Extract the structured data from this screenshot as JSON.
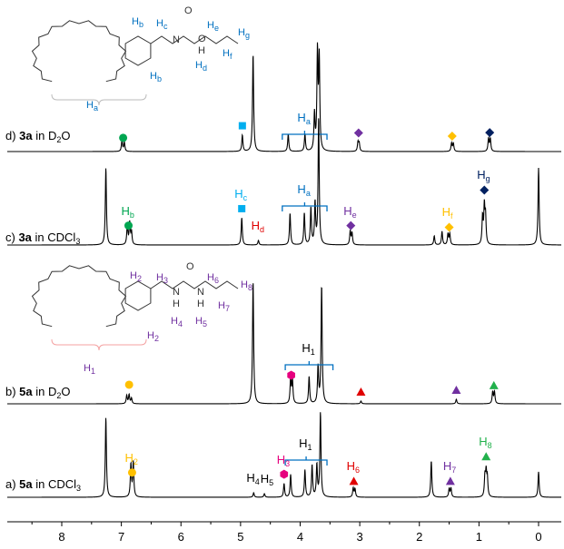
{
  "chart_data": {
    "type": "line",
    "xlabel": "",
    "xlim": [
      8.9,
      -0.4
    ],
    "x_reversed": true,
    "x_ticks": [
      "8",
      "7",
      "6",
      "5",
      "4",
      "3",
      "2",
      "1",
      "0"
    ],
    "grid": false,
    "spectra": [
      {
        "id": "d",
        "prefix": "d) ",
        "compound": "3a",
        "mid": " in D",
        "sub": "2",
        "suffix": "O",
        "peaks": [
          [
            6.99,
            12
          ],
          [
            6.95,
            10
          ],
          [
            4.97,
            18
          ],
          [
            4.79,
            107
          ],
          [
            4.2,
            19
          ],
          [
            3.92,
            19
          ],
          [
            3.76,
            40
          ],
          [
            3.71,
            107
          ],
          [
            3.68,
            100
          ],
          [
            3.03,
            10
          ],
          [
            3.01,
            9
          ],
          [
            1.46,
            9
          ],
          [
            1.43,
            9
          ],
          [
            0.84,
            14
          ],
          [
            0.81,
            14
          ]
        ],
        "markers": [
          {
            "ppm": 6.97,
            "shape": "circle",
            "color": "#00a651",
            "label": "",
            "sub": ""
          },
          {
            "ppm": 4.97,
            "shape": "square",
            "color": "#00aeef",
            "label": "",
            "sub": ""
          },
          {
            "ppm": 3.02,
            "shape": "diamond",
            "color": "#7030a0",
            "label": "",
            "sub": ""
          },
          {
            "ppm": 1.45,
            "shape": "diamond",
            "color": "#ffc000",
            "label": "",
            "sub": ""
          },
          {
            "ppm": 0.82,
            "shape": "diamond",
            "color": "#002060",
            "label": "",
            "sub": ""
          }
        ],
        "bracket": {
          "from": 4.3,
          "to": 3.55,
          "color": "#0070c0",
          "label": "H",
          "sub": "a"
        }
      },
      {
        "id": "c",
        "prefix": "c) ",
        "compound": "3a",
        "mid": " in CDCl",
        "sub": "3",
        "suffix": "",
        "peaks": [
          [
            7.26,
            85
          ],
          [
            6.9,
            22
          ],
          [
            6.86,
            24
          ],
          [
            6.83,
            14
          ],
          [
            4.98,
            30
          ],
          [
            4.7,
            5
          ],
          [
            4.17,
            35
          ],
          [
            3.93,
            35
          ],
          [
            3.82,
            40
          ],
          [
            3.75,
            45
          ],
          [
            3.69,
            140
          ],
          [
            3.16,
            15
          ],
          [
            3.13,
            13
          ],
          [
            1.75,
            10
          ],
          [
            1.62,
            15
          ],
          [
            1.52,
            12
          ],
          [
            1.49,
            12
          ],
          [
            0.94,
            30
          ],
          [
            0.91,
            40
          ],
          [
            0.89,
            30
          ],
          [
            0.0,
            85
          ]
        ],
        "markers": [
          {
            "ppm": 6.88,
            "shape": "circle",
            "color": "#00a651",
            "label": "H",
            "sub": "b"
          },
          {
            "ppm": 4.98,
            "shape": "square",
            "color": "#00aeef",
            "label": "H",
            "sub": "c"
          },
          {
            "ppm": 4.7,
            "shape": "none",
            "color": "#e00000",
            "label": "H",
            "sub": "d"
          },
          {
            "ppm": 3.15,
            "shape": "diamond",
            "color": "#7030a0",
            "label": "H",
            "sub": "e"
          },
          {
            "ppm": 1.5,
            "shape": "diamond",
            "color": "#ffc000",
            "label": "H",
            "sub": "f"
          },
          {
            "ppm": 0.91,
            "shape": "diamond",
            "color": "#002060",
            "label": "H",
            "sub": "g"
          }
        ],
        "bracket": {
          "from": 4.3,
          "to": 3.55,
          "color": "#0070c0",
          "label": "H",
          "sub": "a"
        }
      },
      {
        "id": "b",
        "prefix": "b) ",
        "compound": "5a",
        "mid": " in D",
        "sub": "2",
        "suffix": "O",
        "peaks": [
          [
            6.91,
            9
          ],
          [
            6.87,
            10
          ],
          [
            6.83,
            6
          ],
          [
            4.79,
            135
          ],
          [
            4.16,
            28
          ],
          [
            4.13,
            26
          ],
          [
            3.85,
            30
          ],
          [
            3.7,
            40
          ],
          [
            3.64,
            130
          ],
          [
            2.98,
            3
          ],
          [
            1.38,
            5
          ],
          [
            0.77,
            13
          ],
          [
            0.74,
            13
          ]
        ],
        "markers": [
          {
            "ppm": 6.87,
            "shape": "circle",
            "color": "#ffc000",
            "label": "",
            "sub": ""
          },
          {
            "ppm": 4.15,
            "shape": "hexagon",
            "color": "#e6007e",
            "label": "",
            "sub": ""
          },
          {
            "ppm": 2.98,
            "shape": "triangle",
            "color": "#e00000",
            "label": "",
            "sub": ""
          },
          {
            "ppm": 1.38,
            "shape": "triangle",
            "color": "#7030a0",
            "label": "",
            "sub": ""
          },
          {
            "ppm": 0.75,
            "shape": "triangle",
            "color": "#22b14c",
            "label": "",
            "sub": ""
          }
        ],
        "bracket": {
          "from": 4.25,
          "to": 3.45,
          "color": "#0070c0",
          "label": "H",
          "sub": "1"
        }
      },
      {
        "id": "a",
        "prefix": "a) ",
        "compound": "5a",
        "mid": " in CDCl",
        "sub": "3",
        "suffix": "",
        "peaks": [
          [
            7.26,
            88
          ],
          [
            6.84,
            36
          ],
          [
            6.8,
            38
          ],
          [
            4.78,
            5
          ],
          [
            4.6,
            4
          ],
          [
            4.27,
            15
          ],
          [
            4.16,
            25
          ],
          [
            3.92,
            30
          ],
          [
            3.8,
            35
          ],
          [
            3.72,
            35
          ],
          [
            3.66,
            93
          ],
          [
            3.11,
            10
          ],
          [
            3.08,
            9
          ],
          [
            1.8,
            40
          ],
          [
            1.5,
            9
          ],
          [
            1.47,
            10
          ],
          [
            0.9,
            22
          ],
          [
            0.88,
            25
          ],
          [
            0.86,
            20
          ],
          [
            0.0,
            28
          ]
        ],
        "markers": [
          {
            "ppm": 6.82,
            "shape": "circle",
            "color": "#ffc000",
            "label": "H",
            "sub": "2"
          },
          {
            "ppm": 4.78,
            "shape": "none",
            "color": "#000000",
            "label": "H",
            "sub": "4"
          },
          {
            "ppm": 4.6,
            "shape": "none",
            "color": "#000000",
            "label": "H",
            "sub": "5"
          },
          {
            "ppm": 4.27,
            "shape": "hexagon",
            "color": "#e6007e",
            "label": "H",
            "sub": "3"
          },
          {
            "ppm": 3.1,
            "shape": "triangle",
            "color": "#e00000",
            "label": "H",
            "sub": "6"
          },
          {
            "ppm": 1.48,
            "shape": "triangle",
            "color": "#7030a0",
            "label": "H",
            "sub": "7"
          },
          {
            "ppm": 0.88,
            "shape": "triangle",
            "color": "#22b14c",
            "label": "H",
            "sub": "8"
          }
        ],
        "bracket": {
          "from": 4.25,
          "to": 3.55,
          "color": "#0070c0",
          "label": "H",
          "sub": "1"
        }
      }
    ]
  },
  "structures": [
    {
      "id": "3a",
      "color": "#0070c0",
      "labels": [
        [
          "H",
          "b"
        ],
        [
          "H",
          "c"
        ],
        [
          "H",
          "e"
        ],
        [
          "H",
          "g"
        ],
        [
          "H",
          "f"
        ],
        [
          "H",
          "d"
        ],
        [
          "H",
          "b"
        ],
        [
          "H",
          "a"
        ]
      ],
      "atoms": [
        "O",
        "N",
        "H",
        "O"
      ]
    },
    {
      "id": "5a",
      "color": "#7030a0",
      "labels": [
        [
          "H",
          "2"
        ],
        [
          "H",
          "3"
        ],
        [
          "H",
          "6"
        ],
        [
          "H",
          "8"
        ],
        [
          "H",
          "7"
        ],
        [
          "H",
          "4"
        ],
        [
          "H",
          "5"
        ],
        [
          "H",
          "2"
        ],
        [
          "H",
          "1"
        ]
      ],
      "atoms": [
        "N",
        "H",
        "N",
        "H",
        "O"
      ]
    }
  ]
}
